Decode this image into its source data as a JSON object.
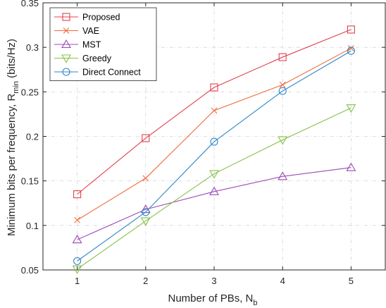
{
  "chart_data": {
    "type": "line",
    "x": [
      1,
      2,
      3,
      4,
      5
    ],
    "xlabel": {
      "main": "Number of PBs, N",
      "sub": "b"
    },
    "ylabel": {
      "main": "Minimum bits per frequency, R",
      "sub": "min",
      "unit": " (bits/Hz)"
    },
    "xlim": [
      0.5,
      5.5
    ],
    "ylim": [
      0.05,
      0.35
    ],
    "xticks": [
      1,
      2,
      3,
      4,
      5
    ],
    "yticks": [
      0.05,
      0.1,
      0.15,
      0.2,
      0.25,
      0.3,
      0.35
    ],
    "ytick_labels": [
      "0.05",
      "0.1",
      "0.15",
      "0.2",
      "0.25",
      "0.3",
      "0.35"
    ],
    "grid": true,
    "legend_position": "top-left",
    "series": [
      {
        "name": "Proposed",
        "color": "#e0404e",
        "marker": "square",
        "values": [
          0.135,
          0.198,
          0.255,
          0.289,
          0.32
        ]
      },
      {
        "name": "VAE",
        "color": "#ee6a3a",
        "marker": "x",
        "values": [
          0.106,
          0.153,
          0.229,
          0.258,
          0.299
        ]
      },
      {
        "name": "MST",
        "color": "#9a4bb8",
        "marker": "triangle-up",
        "values": [
          0.084,
          0.118,
          0.138,
          0.155,
          0.165
        ]
      },
      {
        "name": "Greedy",
        "color": "#86c04a",
        "marker": "triangle-down",
        "values": [
          0.051,
          0.105,
          0.158,
          0.196,
          0.232
        ]
      },
      {
        "name": "Direct Connect",
        "color": "#2f86c8",
        "marker": "circle",
        "values": [
          0.06,
          0.115,
          0.194,
          0.251,
          0.296
        ]
      }
    ]
  }
}
